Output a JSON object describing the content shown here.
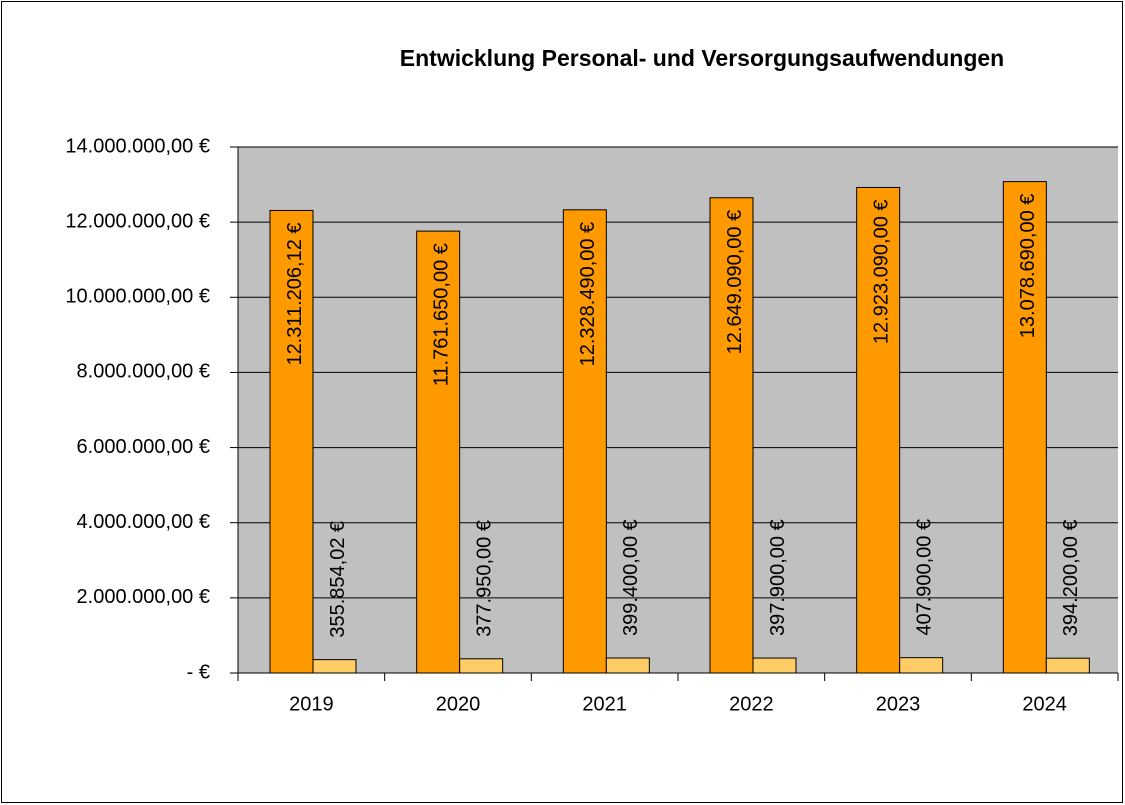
{
  "chart_data": {
    "type": "bar",
    "title": "Entwicklung Personal- und Versorgungsaufwendungen",
    "categories": [
      "2019",
      "2020",
      "2021",
      "2022",
      "2023",
      "2024"
    ],
    "series": [
      {
        "color": "#FF9900",
        "values": [
          12311206.12,
          11761650,
          12328490,
          12649090,
          12923090,
          13078690
        ],
        "value_labels": [
          "12.311.206,12 €",
          "11.761.650,00 €",
          "12.328.490,00 €",
          "12.649.090,00 €",
          "12.923.090,00 €",
          "13.078.690,00 €"
        ]
      },
      {
        "color": "#FFCC66",
        "values": [
          355854.02,
          377950,
          399400,
          397900,
          407900,
          394200
        ],
        "value_labels": [
          "355.854,02 €",
          "377.950,00 €",
          "399.400,00 €",
          "397.900,00 €",
          "407.900,00 €",
          "394.200,00 €"
        ]
      }
    ],
    "ylim": [
      0,
      14000000
    ],
    "yticks": [
      {
        "value": 0,
        "label": "-  €"
      },
      {
        "value": 2000000,
        "label": "2.000.000,00 €"
      },
      {
        "value": 4000000,
        "label": "4.000.000,00 €"
      },
      {
        "value": 6000000,
        "label": "6.000.000,00 €"
      },
      {
        "value": 8000000,
        "label": "8.000.000,00 €"
      },
      {
        "value": 10000000,
        "label": "10.000.000,00 €"
      },
      {
        "value": 12000000,
        "label": "12.000.000,00 €"
      },
      {
        "value": 14000000,
        "label": "14.000.000,00 €"
      }
    ],
    "grid": true,
    "plot_background": "#C0C0C0"
  }
}
